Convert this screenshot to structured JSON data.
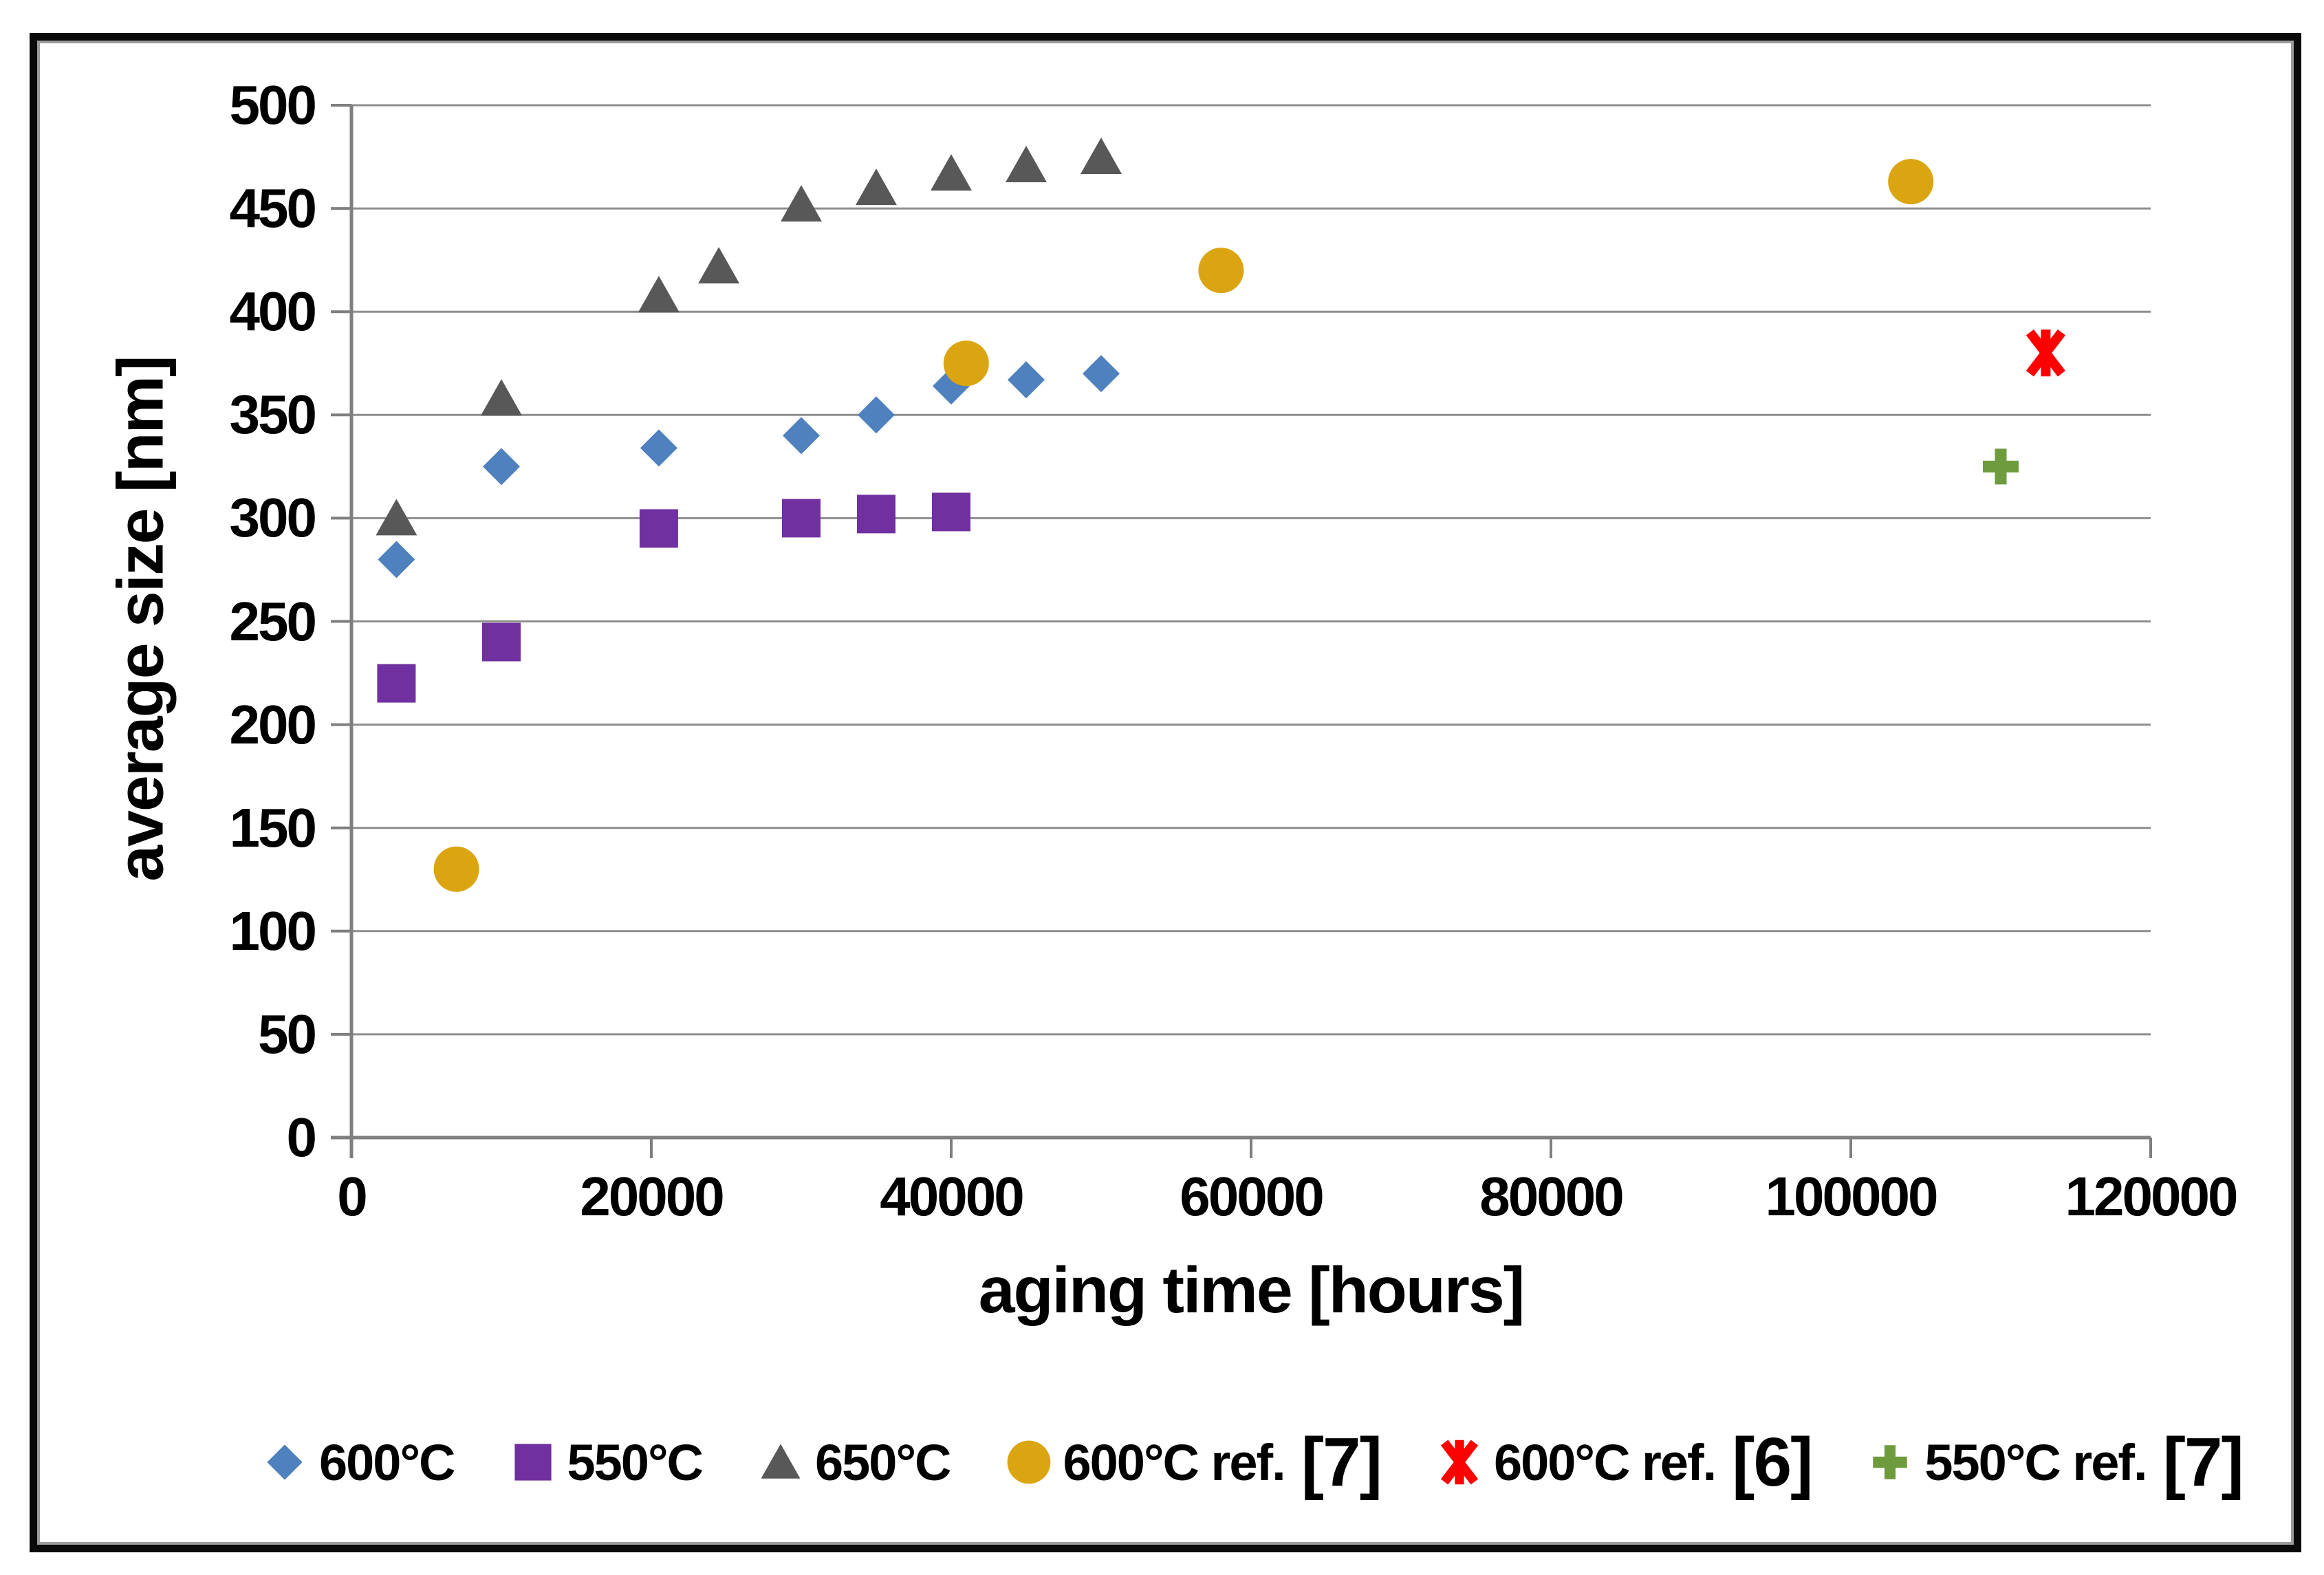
{
  "axes": {
    "x_title": "aging time [hours]",
    "y_title": "average size [nm]"
  },
  "colors": {
    "grid": "#8e8e8e",
    "axis": "#7f7f7f",
    "frame_black": "#0a0a0a",
    "frame_gray": "#9c9c9c",
    "text": "#000000"
  },
  "chart_data": {
    "type": "scatter",
    "title": "",
    "xlabel": "aging time [hours]",
    "ylabel": "average size [nm]",
    "grid": "horizontal-only",
    "legend_position": "bottom",
    "x_axis": {
      "min": 0,
      "max": 120000,
      "step": 20000,
      "tick_labels": [
        "0",
        "20000",
        "40000",
        "60000",
        "80000",
        "100000",
        "120000"
      ]
    },
    "y_axis": {
      "min": 0,
      "max": 500,
      "step": 50,
      "tick_labels": [
        "0",
        "50",
        "100",
        "150",
        "200",
        "250",
        "300",
        "350",
        "400",
        "450",
        "500"
      ]
    },
    "series": [
      {
        "name": "600°C",
        "ref": "",
        "marker": "diamond",
        "color": "#4E81BD",
        "points": [
          [
            3000,
            280
          ],
          [
            10000,
            325
          ],
          [
            20500,
            334
          ],
          [
            30000,
            340
          ],
          [
            35000,
            350
          ],
          [
            40000,
            364
          ],
          [
            45000,
            367
          ],
          [
            50000,
            370
          ]
        ]
      },
      {
        "name": "550°C",
        "ref": "",
        "marker": "square",
        "color": "#7030A0",
        "points": [
          [
            3000,
            220
          ],
          [
            10000,
            240
          ],
          [
            20500,
            295
          ],
          [
            30000,
            300
          ],
          [
            35000,
            302
          ],
          [
            40000,
            303
          ]
        ]
      },
      {
        "name": "650°C",
        "ref": "",
        "marker": "triangle",
        "color": "#585858",
        "points": [
          [
            3000,
            300
          ],
          [
            10000,
            358
          ],
          [
            20500,
            408
          ],
          [
            24500,
            422
          ],
          [
            30000,
            452
          ],
          [
            35000,
            460
          ],
          [
            40000,
            467
          ],
          [
            45000,
            471
          ],
          [
            50000,
            475
          ]
        ]
      },
      {
        "name": "600°C ref.",
        "ref": "[7]",
        "marker": "circle",
        "color": "#DAA511",
        "points": [
          [
            7000,
            130
          ],
          [
            41000,
            375
          ],
          [
            58000,
            420
          ],
          [
            104000,
            463
          ]
        ]
      },
      {
        "name": "600°C ref.",
        "ref": "[6]",
        "marker": "asterisk",
        "color": "#FF0000",
        "points": [
          [
            113000,
            380
          ]
        ]
      },
      {
        "name": "550°C ref.",
        "ref": "[7]",
        "marker": "plus",
        "color": "#6E9B3D",
        "points": [
          [
            110000,
            325
          ]
        ]
      }
    ]
  }
}
